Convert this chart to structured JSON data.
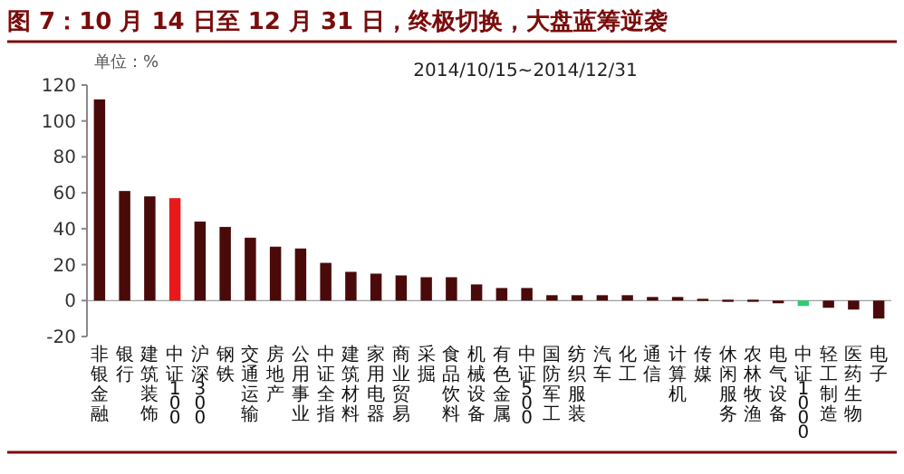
{
  "chart_data": {
    "type": "bar",
    "title": "图 7：10 月 14 日至 12 月 31 日，终极切换，大盘蓝筹逆袭",
    "subtitle": "2014/10/15~2014/12/31",
    "annotations": [
      "单位：%"
    ],
    "categories": [
      "非银金融",
      "银行",
      "建筑装饰",
      "中证100",
      "沪深300",
      "钢铁",
      "交通运输",
      "房地产",
      "公用事业",
      "中证全指",
      "建筑材料",
      "家用电器",
      "商业贸易",
      "采掘",
      "食品饮料",
      "机械设备",
      "有色金属",
      "中证500",
      "国防军工",
      "纺织服装",
      "汽车",
      "化工",
      "通信",
      "计算机",
      "传媒",
      "休闲服务",
      "农林牧渔",
      "电气设备",
      "中证1000",
      "轻工制造",
      "医药生物",
      "电子"
    ],
    "values": [
      112,
      61,
      58,
      57,
      44,
      41,
      35,
      30,
      29,
      21,
      16,
      15,
      14,
      13,
      13,
      9,
      7,
      7,
      3,
      3,
      3,
      3,
      2,
      2,
      1,
      0.5,
      0.5,
      -1.5,
      -3,
      -4,
      -5,
      -10
    ],
    "colors": [
      "#4a0a0a",
      "#4a0a0a",
      "#4a0a0a",
      "#e8191a",
      "#4a0a0a",
      "#4a0a0a",
      "#4a0a0a",
      "#4a0a0a",
      "#4a0a0a",
      "#4a0a0a",
      "#4a0a0a",
      "#4a0a0a",
      "#4a0a0a",
      "#4a0a0a",
      "#4a0a0a",
      "#4a0a0a",
      "#4a0a0a",
      "#4a0a0a",
      "#4a0a0a",
      "#4a0a0a",
      "#4a0a0a",
      "#4a0a0a",
      "#4a0a0a",
      "#4a0a0a",
      "#4a0a0a",
      "#4a0a0a",
      "#4a0a0a",
      "#4a0a0a",
      "#2ecc71",
      "#4a0a0a",
      "#4a0a0a",
      "#4a0a0a"
    ],
    "ylim": [
      -20,
      120
    ],
    "yticks": [
      -20,
      0,
      20,
      40,
      60,
      80,
      100,
      120
    ]
  }
}
